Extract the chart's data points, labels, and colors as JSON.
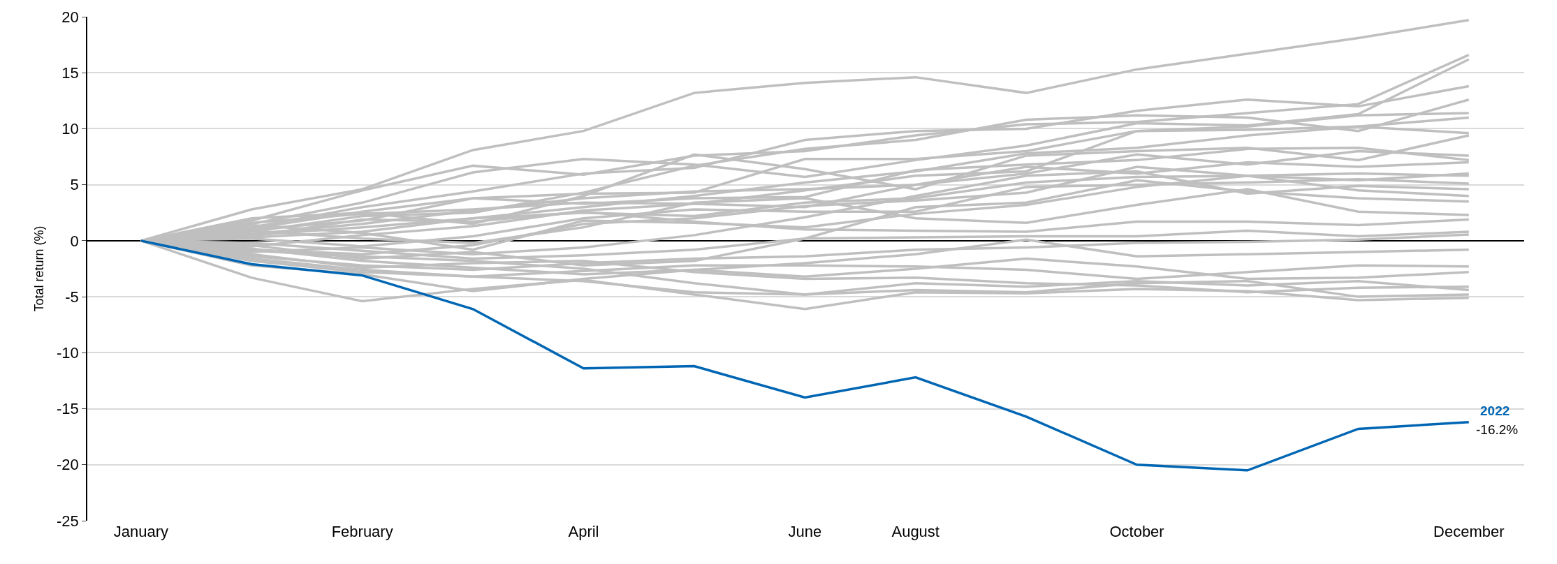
{
  "chart_data": {
    "type": "line",
    "ylabel": "Total return (%)",
    "categories": [
      "January",
      null,
      "February",
      null,
      "April",
      null,
      "June",
      "August",
      null,
      "October",
      null,
      null,
      "December"
    ],
    "ylim": [
      -25,
      20
    ],
    "yticks": [
      -25,
      -20,
      -15,
      -10,
      -5,
      0,
      5,
      10,
      15,
      20
    ],
    "grid": "y",
    "legend": false,
    "marker": "none",
    "line_style": "solid",
    "series": [
      {
        "color": "#bfbfbf",
        "values": [
          0,
          2.8,
          4.6,
          8.1,
          9.8,
          13.2,
          14.1,
          14.6,
          13.2,
          15.3,
          16.7,
          18.1,
          19.7
        ]
      },
      {
        "color": "#bfbfbf",
        "values": [
          0,
          1.8,
          4.5,
          6.7,
          5.9,
          7.6,
          8.0,
          9.4,
          10.4,
          10.6,
          11.4,
          12.2,
          16.6
        ]
      },
      {
        "color": "#bfbfbf",
        "values": [
          0,
          1.5,
          3.4,
          6.1,
          7.3,
          6.8,
          5.7,
          7.2,
          8.5,
          10.5,
          10.3,
          11.3,
          16.2
        ]
      },
      {
        "color": "#bfbfbf",
        "values": [
          0,
          1.2,
          3.0,
          4.4,
          6.0,
          6.5,
          9.0,
          9.8,
          10.0,
          11.6,
          12.6,
          12.0,
          13.8
        ]
      },
      {
        "color": "#bfbfbf",
        "values": [
          0,
          0.8,
          2.2,
          2.5,
          4.3,
          6.7,
          8.2,
          9.0,
          10.8,
          11.2,
          11.0,
          9.8,
          12.6
        ]
      },
      {
        "color": "#bfbfbf",
        "values": [
          0,
          1.0,
          1.8,
          3.8,
          4.2,
          4.3,
          7.3,
          7.3,
          8.0,
          9.8,
          10.2,
          11.2,
          11.4
        ]
      },
      {
        "color": "#bfbfbf",
        "values": [
          0,
          0.5,
          1.2,
          2.0,
          3.0,
          4.0,
          5.2,
          6.2,
          7.8,
          8.3,
          9.4,
          10.2,
          11.0
        ]
      },
      {
        "color": "#bfbfbf",
        "values": [
          0,
          1.6,
          2.4,
          2.8,
          3.4,
          3.3,
          4.5,
          5.8,
          6.2,
          9.8,
          9.9,
          10.2,
          9.6
        ]
      },
      {
        "color": "#bfbfbf",
        "values": [
          0,
          2.0,
          2.5,
          1.5,
          4.0,
          7.7,
          6.4,
          4.6,
          7.6,
          8.0,
          8.3,
          7.2,
          9.4
        ]
      },
      {
        "color": "#bfbfbf",
        "values": [
          0,
          0.6,
          1.5,
          2.7,
          3.8,
          4.4,
          4.6,
          5.0,
          6.0,
          7.7,
          6.8,
          8.0,
          7.6
        ]
      },
      {
        "color": "#bfbfbf",
        "values": [
          0,
          1.1,
          2.6,
          3.8,
          3.3,
          3.8,
          3.9,
          6.3,
          6.8,
          7.2,
          8.2,
          8.3,
          7.2
        ]
      },
      {
        "color": "#bfbfbf",
        "values": [
          0,
          -0.5,
          0.5,
          1.3,
          2.7,
          3.3,
          3.0,
          5.0,
          6.6,
          6.0,
          7.0,
          6.6,
          7.0
        ]
      },
      {
        "color": "#bfbfbf",
        "values": [
          0,
          0.3,
          0.8,
          2.0,
          2.5,
          2.2,
          3.4,
          3.8,
          5.2,
          5.7,
          5.8,
          5.4,
          6.0
        ]
      },
      {
        "color": "#bfbfbf",
        "values": [
          0,
          -0.8,
          -1.2,
          -0.4,
          1.5,
          2.0,
          3.1,
          3.6,
          4.3,
          6.6,
          5.8,
          6.0,
          5.8
        ]
      },
      {
        "color": "#bfbfbf",
        "values": [
          0,
          0.2,
          -0.5,
          0.4,
          2.0,
          2.8,
          2.6,
          2.6,
          4.8,
          5.0,
          5.2,
          5.5,
          5.1
        ]
      },
      {
        "color": "#bfbfbf",
        "values": [
          0,
          -1.0,
          -0.6,
          -1.2,
          -0.6,
          0.5,
          2.1,
          4.0,
          5.8,
          6.2,
          4.2,
          4.9,
          4.6
        ]
      },
      {
        "color": "#bfbfbf",
        "values": [
          0,
          1.4,
          0.7,
          -0.8,
          1.8,
          1.6,
          1.2,
          2.4,
          3.2,
          4.8,
          5.8,
          4.5,
          4.0
        ]
      },
      {
        "color": "#bfbfbf",
        "values": [
          0,
          -0.4,
          -1.6,
          -1.0,
          -2.2,
          -1.8,
          0.2,
          3.0,
          3.4,
          5.4,
          4.4,
          3.8,
          3.5
        ]
      },
      {
        "color": "#bfbfbf",
        "values": [
          0,
          0.9,
          0.2,
          -0.2,
          1.2,
          3.4,
          3.8,
          2.0,
          1.6,
          3.2,
          4.6,
          2.6,
          2.3
        ]
      },
      {
        "color": "#bfbfbf",
        "values": [
          0,
          0.4,
          1.9,
          1.7,
          2.6,
          1.7,
          1.0,
          0.9,
          0.8,
          1.7,
          1.7,
          1.4,
          1.9
        ]
      },
      {
        "color": "#bfbfbf",
        "values": [
          0,
          -0.2,
          -0.9,
          -1.6,
          -1.3,
          -0.8,
          0.2,
          0.3,
          0.4,
          0.4,
          0.9,
          0.4,
          0.8
        ]
      },
      {
        "color": "#bfbfbf",
        "values": [
          0,
          -1.4,
          -2.2,
          -2.6,
          -2.0,
          -1.6,
          -1.4,
          -0.8,
          -0.6,
          -0.2,
          -0.1,
          0.1,
          0.55
        ]
      },
      {
        "color": "#bfbfbf",
        "values": [
          0,
          -0.7,
          -1.8,
          -2.4,
          -3.0,
          -2.6,
          -2.0,
          -1.2,
          0.1,
          -1.4,
          -1.2,
          -1.0,
          -0.8
        ]
      },
      {
        "color": "#bfbfbf",
        "values": [
          0,
          -1.6,
          -2.6,
          -3.2,
          -2.7,
          -2.2,
          -2.2,
          -2.3,
          -2.6,
          -3.4,
          -2.8,
          -2.2,
          -2.3
        ]
      },
      {
        "color": "#bfbfbf",
        "values": [
          0,
          -2.2,
          -3.0,
          -4.5,
          -3.4,
          -2.6,
          -3.2,
          -2.5,
          -1.6,
          -2.3,
          -3.4,
          -3.3,
          -2.8
        ]
      },
      {
        "color": "#bfbfbf",
        "values": [
          0,
          -1.2,
          -2.4,
          -2.0,
          -1.8,
          -2.8,
          -3.4,
          -3.3,
          -3.8,
          -4.0,
          -4.6,
          -4.2,
          -4.1
        ]
      },
      {
        "color": "#bfbfbf",
        "values": [
          0,
          -0.9,
          -1.4,
          -1.8,
          -2.5,
          -3.8,
          -4.8,
          -3.8,
          -4.1,
          -3.6,
          -4.0,
          -3.6,
          -4.4
        ]
      },
      {
        "color": "#bfbfbf",
        "values": [
          0,
          -1.8,
          -2.8,
          -3.2,
          -3.6,
          -4.6,
          -4.8,
          -4.4,
          -4.6,
          -3.8,
          -3.6,
          -5.0,
          -4.8
        ]
      },
      {
        "color": "#bfbfbf",
        "values": [
          0,
          -3.3,
          -5.4,
          -4.3,
          -3.5,
          -4.8,
          -6.1,
          -4.6,
          -4.7,
          -4.3,
          -4.5,
          -5.3,
          -5.1
        ]
      },
      {
        "name": "2022",
        "color": "#0066b3",
        "values": [
          0,
          -2.1,
          -3.1,
          -6.1,
          -11.4,
          -11.2,
          -14.0,
          -12.2,
          -15.7,
          -20.0,
          -20.5,
          -16.8,
          -16.2
        ]
      }
    ],
    "annotations": [
      {
        "text": "-16.2%",
        "x": "December",
        "y": -16.2
      }
    ]
  }
}
